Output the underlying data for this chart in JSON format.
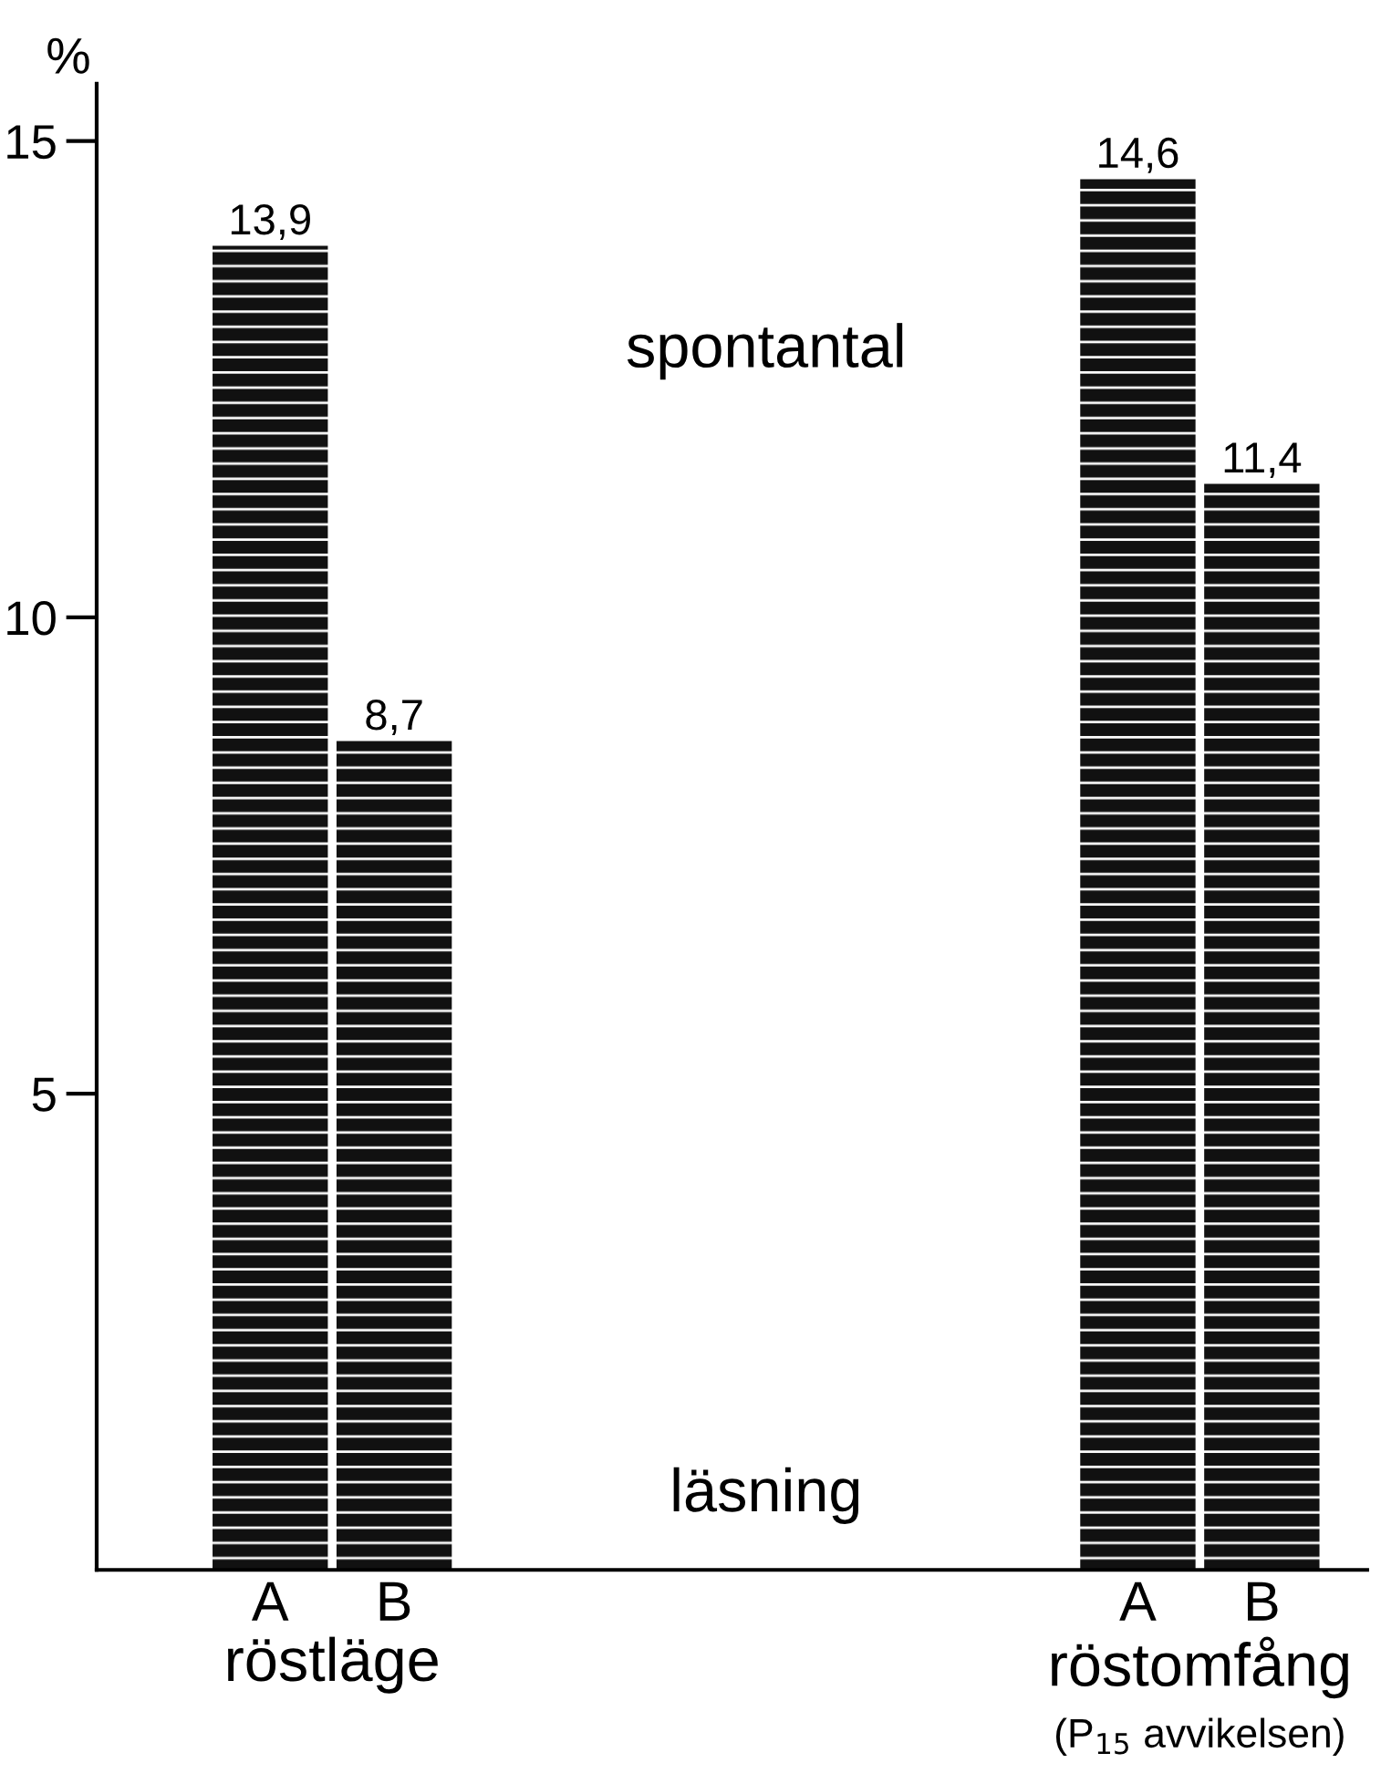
{
  "chart_data": {
    "type": "bar",
    "ylabel": "%",
    "categories": [
      "A",
      "B",
      null,
      null,
      null,
      null,
      null,
      "A",
      "B"
    ],
    "values": [
      13.9,
      8.7,
      null,
      null,
      null,
      null,
      null,
      14.6,
      11.4
    ],
    "value_labels": [
      "13,9",
      "8,7",
      null,
      null,
      null,
      null,
      null,
      "14,6",
      "11,4"
    ],
    "color": "#111111",
    "ylim": [
      0,
      15.6
    ],
    "yticks": [
      5,
      10,
      15
    ],
    "annotations": [
      "spontantal",
      "läsning",
      "röstläge",
      "röstomfång\n(P$_{15}$ avvikelsen)"
    ],
    "grid": false
  }
}
